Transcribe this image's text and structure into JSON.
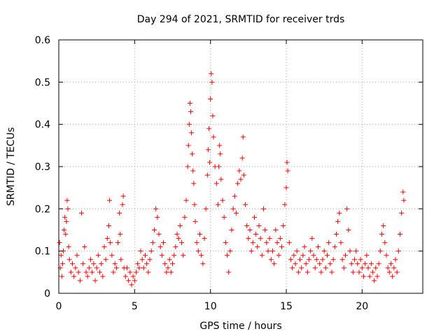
{
  "chart_data": {
    "type": "scatter",
    "title": "Day 294 of 2021, SRMTID for receiver trds",
    "xlabel": "GPS time / hours",
    "ylabel": "SRMTID / TECUs",
    "xlim": [
      0,
      24
    ],
    "ylim": [
      0,
      0.6
    ],
    "x_ticks": [
      0,
      5,
      10,
      15,
      20
    ],
    "x_tick_labels": [
      "0",
      "5",
      "10",
      "15",
      "20"
    ],
    "y_ticks": [
      0,
      0.1,
      0.2,
      0.3,
      0.4,
      0.5,
      0.6
    ],
    "y_tick_labels": [
      "0",
      "0.1",
      "0.2",
      "0.3",
      "0.4",
      "0.5",
      "0.6"
    ],
    "grid": true,
    "marker": "+",
    "color": "#ff0000",
    "series": [
      {
        "name": "SRMTID",
        "points": [
          [
            0.05,
            0.12
          ],
          [
            0.1,
            0.06
          ],
          [
            0.15,
            0.09
          ],
          [
            0.2,
            0.04
          ],
          [
            0.25,
            0.07
          ],
          [
            0.3,
            0.1
          ],
          [
            0.35,
            0.15
          ],
          [
            0.4,
            0.18
          ],
          [
            0.45,
            0.14
          ],
          [
            0.5,
            0.17
          ],
          [
            0.55,
            0.22
          ],
          [
            0.6,
            0.2
          ],
          [
            0.65,
            0.11
          ],
          [
            0.7,
            0.08
          ],
          [
            0.8,
            0.05
          ],
          [
            0.9,
            0.07
          ],
          [
            1.0,
            0.04
          ],
          [
            1.1,
            0.06
          ],
          [
            1.2,
            0.09
          ],
          [
            1.3,
            0.05
          ],
          [
            1.4,
            0.03
          ],
          [
            1.5,
            0.19
          ],
          [
            1.6,
            0.07
          ],
          [
            1.7,
            0.11
          ],
          [
            1.8,
            0.05
          ],
          [
            1.9,
            0.04
          ],
          [
            2.0,
            0.06
          ],
          [
            2.1,
            0.08
          ],
          [
            2.2,
            0.05
          ],
          [
            2.3,
            0.07
          ],
          [
            2.4,
            0.03
          ],
          [
            2.5,
            0.06
          ],
          [
            2.6,
            0.09
          ],
          [
            2.7,
            0.05
          ],
          [
            2.8,
            0.07
          ],
          [
            2.9,
            0.04
          ],
          [
            3.0,
            0.11
          ],
          [
            3.1,
            0.08
          ],
          [
            3.2,
            0.13
          ],
          [
            3.3,
            0.16
          ],
          [
            3.35,
            0.22
          ],
          [
            3.4,
            0.12
          ],
          [
            3.5,
            0.09
          ],
          [
            3.6,
            0.05
          ],
          [
            3.7,
            0.07
          ],
          [
            3.8,
            0.06
          ],
          [
            3.9,
            0.12
          ],
          [
            4.0,
            0.19
          ],
          [
            4.05,
            0.14
          ],
          [
            4.1,
            0.08
          ],
          [
            4.2,
            0.21
          ],
          [
            4.25,
            0.23
          ],
          [
            4.3,
            0.06
          ],
          [
            4.4,
            0.04
          ],
          [
            4.5,
            0.06
          ],
          [
            4.6,
            0.03
          ],
          [
            4.7,
            0.05
          ],
          [
            4.8,
            0.02
          ],
          [
            4.9,
            0.04
          ],
          [
            5.0,
            0.03
          ],
          [
            5.1,
            0.05
          ],
          [
            5.2,
            0.07
          ],
          [
            5.3,
            0.06
          ],
          [
            5.4,
            0.1
          ],
          [
            5.5,
            0.08
          ],
          [
            5.6,
            0.06
          ],
          [
            5.7,
            0.09
          ],
          [
            5.8,
            0.07
          ],
          [
            5.9,
            0.05
          ],
          [
            6.0,
            0.08
          ],
          [
            6.1,
            0.1
          ],
          [
            6.2,
            0.12
          ],
          [
            6.3,
            0.15
          ],
          [
            6.4,
            0.2
          ],
          [
            6.5,
            0.18
          ],
          [
            6.6,
            0.14
          ],
          [
            6.7,
            0.11
          ],
          [
            6.8,
            0.09
          ],
          [
            6.9,
            0.12
          ],
          [
            7.0,
            0.07
          ],
          [
            7.1,
            0.05
          ],
          [
            7.2,
            0.06
          ],
          [
            7.3,
            0.08
          ],
          [
            7.4,
            0.05
          ],
          [
            7.5,
            0.07
          ],
          [
            7.6,
            0.09
          ],
          [
            7.7,
            0.11
          ],
          [
            7.8,
            0.14
          ],
          [
            7.9,
            0.13
          ],
          [
            8.0,
            0.16
          ],
          [
            8.1,
            0.12
          ],
          [
            8.2,
            0.09
          ],
          [
            8.3,
            0.18
          ],
          [
            8.4,
            0.22
          ],
          [
            8.5,
            0.3
          ],
          [
            8.55,
            0.35
          ],
          [
            8.6,
            0.4
          ],
          [
            8.65,
            0.45
          ],
          [
            8.7,
            0.43
          ],
          [
            8.75,
            0.38
          ],
          [
            8.8,
            0.33
          ],
          [
            8.85,
            0.29
          ],
          [
            8.9,
            0.26
          ],
          [
            8.95,
            0.21
          ],
          [
            9.0,
            0.17
          ],
          [
            9.1,
            0.12
          ],
          [
            9.2,
            0.1
          ],
          [
            9.3,
            0.14
          ],
          [
            9.4,
            0.09
          ],
          [
            9.5,
            0.07
          ],
          [
            9.6,
            0.13
          ],
          [
            9.7,
            0.2
          ],
          [
            9.8,
            0.28
          ],
          [
            9.85,
            0.34
          ],
          [
            9.9,
            0.39
          ],
          [
            9.95,
            0.31
          ],
          [
            10.0,
            0.46
          ],
          [
            10.05,
            0.52
          ],
          [
            10.1,
            0.5
          ],
          [
            10.15,
            0.42
          ],
          [
            10.2,
            0.37
          ],
          [
            10.3,
            0.3
          ],
          [
            10.4,
            0.26
          ],
          [
            10.5,
            0.21
          ],
          [
            10.55,
            0.3
          ],
          [
            10.6,
            0.35
          ],
          [
            10.65,
            0.33
          ],
          [
            10.7,
            0.27
          ],
          [
            10.8,
            0.22
          ],
          [
            10.9,
            0.18
          ],
          [
            11.0,
            0.12
          ],
          [
            11.1,
            0.09
          ],
          [
            11.2,
            0.05
          ],
          [
            11.3,
            0.1
          ],
          [
            11.4,
            0.15
          ],
          [
            11.5,
            0.2
          ],
          [
            11.6,
            0.23
          ],
          [
            11.7,
            0.19
          ],
          [
            11.8,
            0.26
          ],
          [
            11.9,
            0.29
          ],
          [
            12.0,
            0.27
          ],
          [
            12.1,
            0.32
          ],
          [
            12.15,
            0.37
          ],
          [
            12.2,
            0.28
          ],
          [
            12.3,
            0.21
          ],
          [
            12.4,
            0.16
          ],
          [
            12.5,
            0.13
          ],
          [
            12.6,
            0.15
          ],
          [
            12.7,
            0.1
          ],
          [
            12.8,
            0.12
          ],
          [
            12.9,
            0.18
          ],
          [
            13.0,
            0.14
          ],
          [
            13.1,
            0.11
          ],
          [
            13.2,
            0.16
          ],
          [
            13.3,
            0.13
          ],
          [
            13.4,
            0.09
          ],
          [
            13.5,
            0.2
          ],
          [
            13.6,
            0.15
          ],
          [
            13.7,
            0.12
          ],
          [
            13.8,
            0.1
          ],
          [
            13.9,
            0.13
          ],
          [
            14.0,
            0.08
          ],
          [
            14.1,
            0.1
          ],
          [
            14.2,
            0.07
          ],
          [
            14.3,
            0.15
          ],
          [
            14.4,
            0.12
          ],
          [
            14.5,
            0.09
          ],
          [
            14.6,
            0.13
          ],
          [
            14.7,
            0.11
          ],
          [
            14.8,
            0.16
          ],
          [
            14.9,
            0.21
          ],
          [
            15.0,
            0.25
          ],
          [
            15.05,
            0.31
          ],
          [
            15.1,
            0.29
          ],
          [
            15.2,
            0.12
          ],
          [
            15.3,
            0.08
          ],
          [
            15.4,
            0.06
          ],
          [
            15.5,
            0.09
          ],
          [
            15.6,
            0.07
          ],
          [
            15.7,
            0.1
          ],
          [
            15.8,
            0.05
          ],
          [
            15.9,
            0.08
          ],
          [
            16.0,
            0.06
          ],
          [
            16.1,
            0.09
          ],
          [
            16.2,
            0.11
          ],
          [
            16.3,
            0.07
          ],
          [
            16.4,
            0.05
          ],
          [
            16.5,
            0.08
          ],
          [
            16.6,
            0.1
          ],
          [
            16.7,
            0.13
          ],
          [
            16.8,
            0.09
          ],
          [
            16.9,
            0.06
          ],
          [
            17.0,
            0.08
          ],
          [
            17.1,
            0.11
          ],
          [
            17.2,
            0.07
          ],
          [
            17.3,
            0.05
          ],
          [
            17.4,
            0.08
          ],
          [
            17.5,
            0.1
          ],
          [
            17.6,
            0.06
          ],
          [
            17.7,
            0.09
          ],
          [
            17.8,
            0.12
          ],
          [
            17.9,
            0.07
          ],
          [
            18.0,
            0.05
          ],
          [
            18.1,
            0.08
          ],
          [
            18.2,
            0.11
          ],
          [
            18.3,
            0.14
          ],
          [
            18.4,
            0.17
          ],
          [
            18.5,
            0.19
          ],
          [
            18.6,
            0.12
          ],
          [
            18.7,
            0.08
          ],
          [
            18.8,
            0.06
          ],
          [
            18.9,
            0.09
          ],
          [
            19.0,
            0.2
          ],
          [
            19.1,
            0.15
          ],
          [
            19.2,
            0.1
          ],
          [
            19.3,
            0.07
          ],
          [
            19.4,
            0.05
          ],
          [
            19.5,
            0.08
          ],
          [
            19.6,
            0.1
          ],
          [
            19.7,
            0.07
          ],
          [
            19.8,
            0.05
          ],
          [
            19.9,
            0.08
          ],
          [
            20.0,
            0.06
          ],
          [
            20.1,
            0.04
          ],
          [
            20.2,
            0.07
          ],
          [
            20.3,
            0.09
          ],
          [
            20.4,
            0.06
          ],
          [
            20.5,
            0.04
          ],
          [
            20.6,
            0.07
          ],
          [
            20.7,
            0.05
          ],
          [
            20.8,
            0.03
          ],
          [
            20.9,
            0.06
          ],
          [
            21.0,
            0.04
          ],
          [
            21.1,
            0.07
          ],
          [
            21.2,
            0.1
          ],
          [
            21.3,
            0.14
          ],
          [
            21.4,
            0.16
          ],
          [
            21.5,
            0.12
          ],
          [
            21.6,
            0.09
          ],
          [
            21.7,
            0.06
          ],
          [
            21.8,
            0.05
          ],
          [
            21.9,
            0.07
          ],
          [
            22.0,
            0.04
          ],
          [
            22.1,
            0.06
          ],
          [
            22.2,
            0.08
          ],
          [
            22.3,
            0.05
          ],
          [
            22.4,
            0.1
          ],
          [
            22.5,
            0.14
          ],
          [
            22.6,
            0.19
          ],
          [
            22.7,
            0.24
          ],
          [
            22.75,
            0.22
          ]
        ]
      }
    ]
  }
}
